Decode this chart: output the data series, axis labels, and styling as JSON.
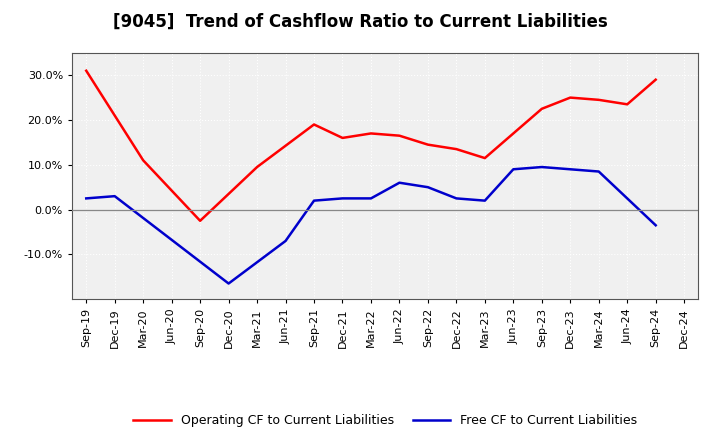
{
  "title": "[9045]  Trend of Cashflow Ratio to Current Liabilities",
  "x_labels": [
    "Sep-19",
    "Dec-19",
    "Mar-20",
    "Jun-20",
    "Sep-20",
    "Dec-20",
    "Mar-21",
    "Jun-21",
    "Sep-21",
    "Dec-21",
    "Mar-22",
    "Jun-22",
    "Sep-22",
    "Dec-22",
    "Mar-23",
    "Jun-23",
    "Sep-23",
    "Dec-23",
    "Mar-24",
    "Jun-24",
    "Sep-24",
    "Dec-24"
  ],
  "operating_cf_x": [
    0,
    2,
    4,
    6,
    8,
    9,
    10,
    11,
    12,
    13,
    14,
    16,
    17,
    18,
    19,
    20
  ],
  "operating_cf_y": [
    31.0,
    11.0,
    -2.5,
    9.5,
    19.0,
    16.0,
    17.0,
    16.5,
    14.5,
    13.5,
    11.5,
    22.5,
    25.0,
    24.5,
    23.5,
    29.0
  ],
  "free_cf_x": [
    0,
    1,
    5,
    7,
    8,
    9,
    10,
    11,
    12,
    13,
    14,
    15,
    16,
    18,
    20
  ],
  "free_cf_y": [
    2.5,
    3.0,
    -16.5,
    -7.0,
    2.0,
    2.5,
    2.5,
    6.0,
    5.0,
    2.5,
    2.0,
    9.0,
    9.5,
    8.5,
    -3.5
  ],
  "ylim": [
    -20,
    35
  ],
  "yticks": [
    -10.0,
    0.0,
    10.0,
    20.0,
    30.0
  ],
  "background_color": "#ffffff",
  "plot_bg_color": "#f0f0f0",
  "grid_color": "#ffffff",
  "operating_color": "#ff0000",
  "free_color": "#0000cc",
  "legend_op": "Operating CF to Current Liabilities",
  "legend_free": "Free CF to Current Liabilities",
  "title_fontsize": 12,
  "tick_fontsize": 8,
  "legend_fontsize": 9
}
